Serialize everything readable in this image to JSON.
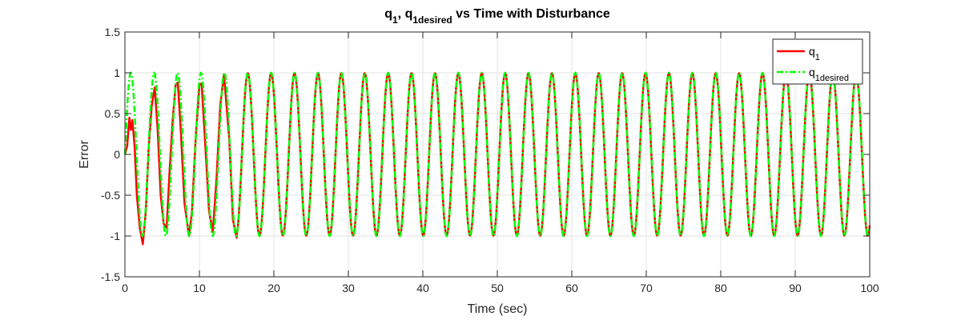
{
  "chart_data": {
    "type": "line",
    "title": {
      "parts": [
        {
          "text": "q",
          "sub": false
        },
        {
          "text": "1",
          "sub": true
        },
        {
          "text": ", q",
          "sub": false
        },
        {
          "text": "1desired",
          "sub": true
        },
        {
          "text": " vs Time with Disturbance",
          "sub": false
        }
      ]
    },
    "xlabel": "Time (sec)",
    "ylabel": "Error",
    "xlim": [
      0,
      100
    ],
    "ylim": [
      -1.5,
      1.5
    ],
    "xticks": [
      0,
      10,
      20,
      30,
      40,
      50,
      60,
      70,
      80,
      90,
      100
    ],
    "yticks": [
      -1.5,
      -1,
      -0.5,
      0,
      0.5,
      1,
      1.5
    ],
    "xtick_labels": [
      "0",
      "10",
      "20",
      "30",
      "40",
      "50",
      "60",
      "70",
      "80",
      "90",
      "100"
    ],
    "ytick_labels": [
      "-1.5",
      "-1",
      "-0.5",
      "0",
      "0.5",
      "1",
      "1.5"
    ],
    "grid": true,
    "legend_position": "top-right",
    "series": [
      {
        "name": "q1",
        "legend_parts": [
          {
            "text": "q",
            "sub": false
          },
          {
            "text": "1",
            "sub": true
          }
        ],
        "color": "#ff0000",
        "style": "solid",
        "description": "tracks sin(2t) after initial transient; starts at 0, overshoots near t≈2.4 to about -1.1",
        "x": [
          0,
          0.3,
          0.6,
          0.8,
          1.0,
          1.3,
          1.6,
          2.0,
          2.4,
          2.8,
          3.2,
          3.6,
          4.0,
          4.4,
          4.8,
          5.2,
          5.6,
          6.0,
          6.4,
          6.8,
          7.1,
          7.5,
          8.0,
          8.6,
          9.0,
          9.5,
          10.0,
          10.3,
          10.8,
          11.3,
          11.8,
          12.3,
          12.8,
          13.3,
          14.0,
          14.5,
          15.0
        ],
        "y": [
          0,
          0.1,
          0.45,
          0.3,
          0.42,
          0.1,
          -0.5,
          -0.9,
          -1.1,
          -0.7,
          0.1,
          0.6,
          0.82,
          0.3,
          -0.5,
          -0.85,
          -0.9,
          -0.2,
          0.4,
          0.85,
          0.88,
          0.3,
          -0.6,
          -1.0,
          -0.7,
          0.2,
          0.85,
          0.87,
          0.1,
          -0.7,
          -0.95,
          -0.3,
          0.6,
          0.98,
          0.2,
          -0.8,
          -1.02
        ]
      },
      {
        "name": "q1desired",
        "legend_parts": [
          {
            "text": "q",
            "sub": false
          },
          {
            "text": "1desired",
            "sub": true
          }
        ],
        "color": "#00ff00",
        "style": "dashdot",
        "description": "sinusoid amplitude 1, period about 3.14 s (sin 2t)",
        "amplitude": 1,
        "period": 3.1416,
        "x_range": [
          0,
          100
        ]
      }
    ]
  }
}
